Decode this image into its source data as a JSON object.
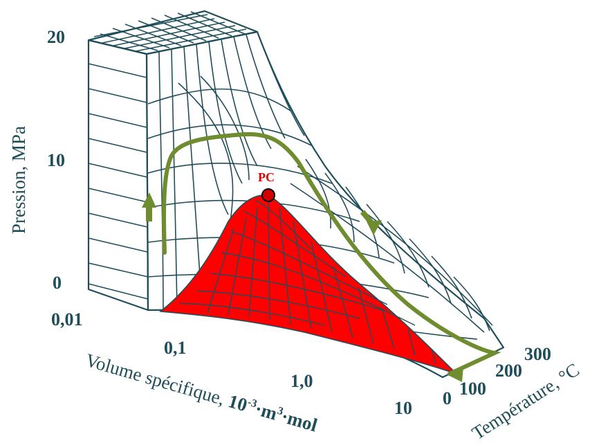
{
  "diagram": {
    "y_axis": {
      "title": "Pression, MPa",
      "ticks": [
        "20",
        "10",
        "0"
      ]
    },
    "x_axis": {
      "title_plain": "Volume spécifique, ",
      "title_bold": "10",
      "title_sup1": "-3",
      "title_mid": "·m",
      "title_sup2": "3",
      "title_end": "·mol",
      "ticks": [
        "0,01",
        "0,1",
        "1,0",
        "10"
      ]
    },
    "z_axis": {
      "title": "Température, °C",
      "ticks": [
        "0",
        "100",
        "200",
        "300"
      ]
    },
    "critical_point_label": "PC",
    "colors": {
      "mesh": "#1f4e5a",
      "two_phase_region": "#ff0000",
      "path_arrow": "#6f8c2f",
      "critical_point_fill": "#d40000",
      "labels": "#1f4e5a"
    }
  }
}
